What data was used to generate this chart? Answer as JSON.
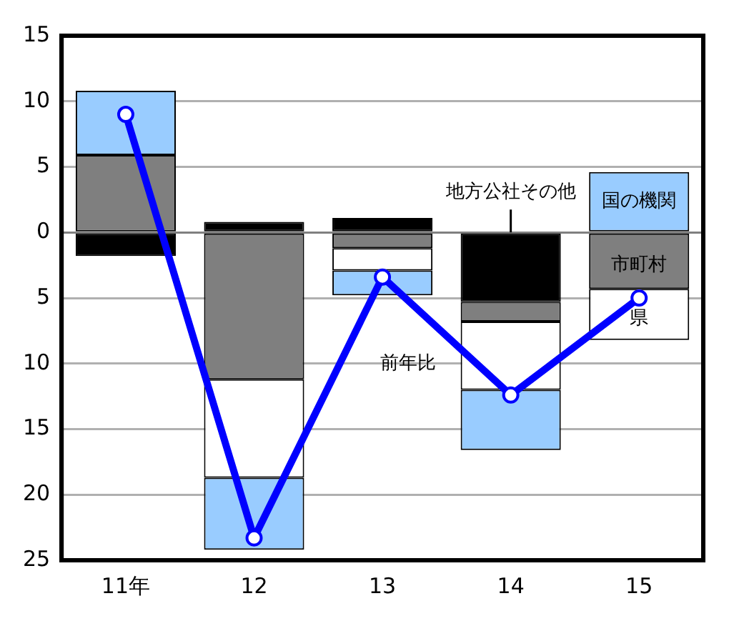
{
  "chart_data": {
    "type": "bar",
    "categories": [
      "11年",
      "12",
      "13",
      "14",
      "15"
    ],
    "series": [
      {
        "name": "地方公社その他",
        "color": "#000000",
        "values": [
          -1.8,
          0.8,
          1.1,
          -5.3,
          null
        ],
        "base": [
          0,
          0,
          0,
          0,
          null
        ]
      },
      {
        "name": "市町村",
        "color": "#7f7f7f",
        "values": [
          5.9,
          -11.2,
          -1.2,
          -1.5,
          -4.3
        ],
        "base": [
          0,
          0,
          0,
          -5.3,
          0
        ]
      },
      {
        "name": "県",
        "color": "#ffffff",
        "values": [
          null,
          -7.5,
          -1.7,
          -5.2,
          -3.9
        ],
        "base": [
          null,
          -11.2,
          -1.2,
          -6.8,
          -4.3
        ]
      },
      {
        "name": "国の機関",
        "color": "#99ccff",
        "values": [
          4.9,
          -5.5,
          -1.9,
          -4.6,
          4.6
        ],
        "base": [
          5.9,
          -18.7,
          -2.9,
          -12.0,
          0
        ]
      },
      {
        "name": "前年比",
        "type": "line",
        "color": "#0000ff",
        "values": [
          9,
          -23.3,
          -3.4,
          -12.4,
          -5.0
        ]
      }
    ],
    "ylim": [
      -25,
      15
    ],
    "yticks": [
      {
        "value": -25,
        "label": "25"
      },
      {
        "value": -20,
        "label": "20"
      },
      {
        "value": -15,
        "label": "15"
      },
      {
        "value": -10,
        "label": "10"
      },
      {
        "value": -5,
        "label": "5"
      },
      0,
      5,
      10,
      15
    ],
    "grid": "y",
    "legend": false,
    "marker": "circle"
  }
}
